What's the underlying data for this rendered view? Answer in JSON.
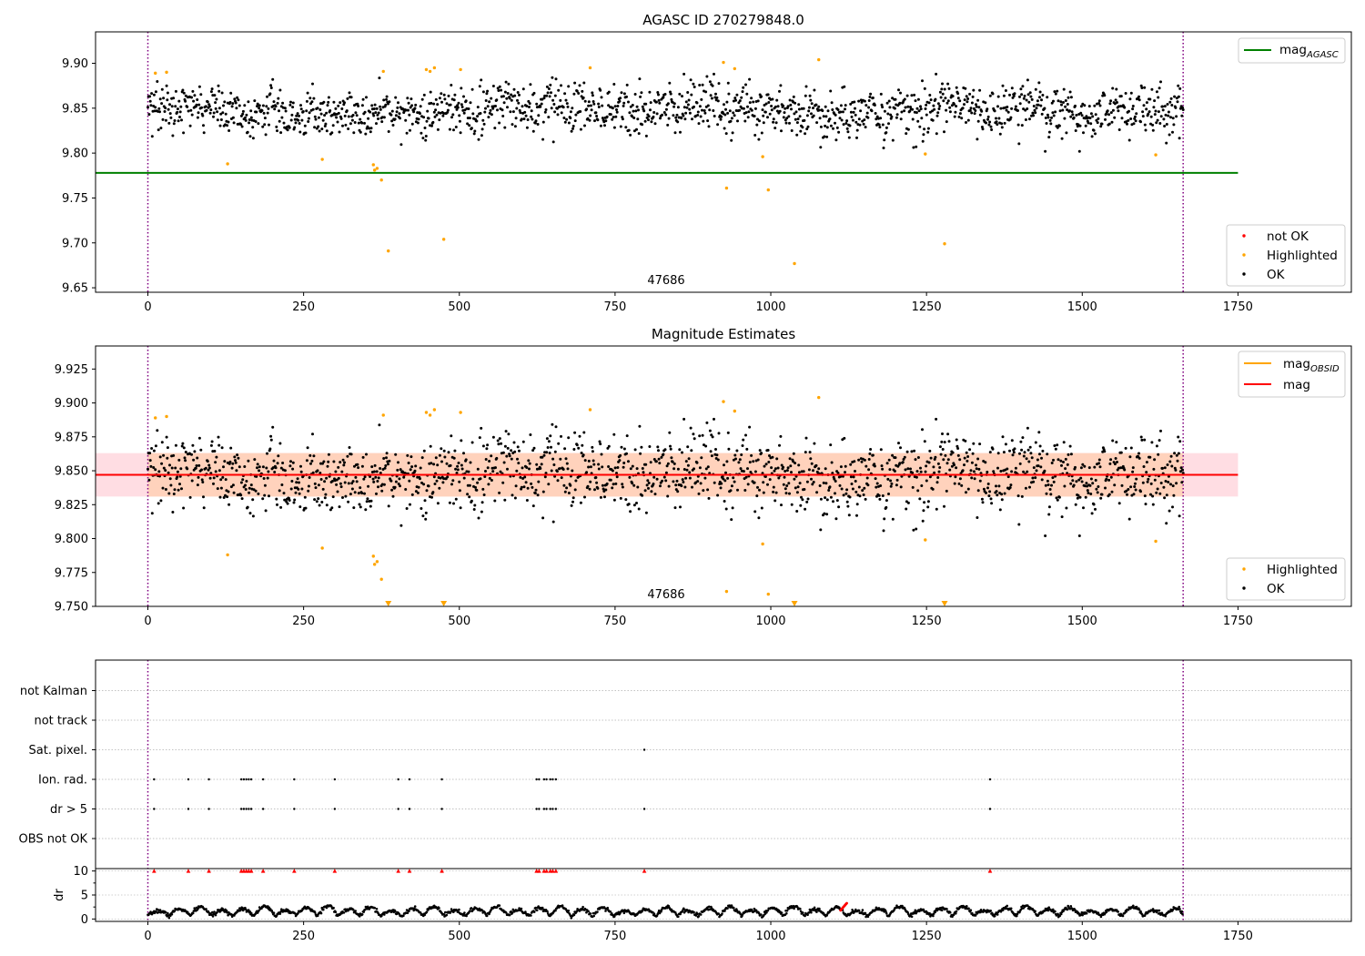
{
  "figure": {
    "title": "AGASC ID 270279848.0"
  },
  "chart_data": [
    {
      "type": "scatter",
      "title": "AGASC ID 270279848.0",
      "xlim": [
        -84,
        1932
      ],
      "ylim": [
        9.645,
        9.935
      ],
      "xticks": [
        0,
        250,
        500,
        750,
        1000,
        1250,
        1500,
        1750
      ],
      "yticks": [
        9.65,
        9.7,
        9.75,
        9.8,
        9.85,
        9.9
      ],
      "ytick_labels": [
        "9.65",
        "9.70",
        "9.75",
        "9.80",
        "9.85",
        "9.90"
      ],
      "vlines": [
        0,
        1662
      ],
      "hline": {
        "label": "mag",
        "subscript": "AGASC",
        "value": 9.778,
        "x_range": [
          -84,
          1750
        ],
        "color": "#008000"
      },
      "annotation": {
        "text": "47686",
        "x": 830,
        "y": 9.652
      },
      "legend_lines": [
        {
          "label": "mag",
          "subscript": "AGASC",
          "color": "#008000"
        }
      ],
      "legend_markers": [
        {
          "label": "not OK",
          "color": "#ff0000"
        },
        {
          "label": "Highlighted",
          "color": "#ffa500"
        },
        {
          "label": "OK",
          "color": "#000000"
        }
      ],
      "series": [
        {
          "name": "Highlighted",
          "color": "#ffa500",
          "points": [
            [
              12,
              9.889
            ],
            [
              30,
              9.89
            ],
            [
              128,
              9.788
            ],
            [
              280,
              9.793
            ],
            [
              362,
              9.787
            ],
            [
              364,
              9.781
            ],
            [
              368,
              9.783
            ],
            [
              375,
              9.77
            ],
            [
              378,
              9.891
            ],
            [
              386,
              9.691
            ],
            [
              447,
              9.893
            ],
            [
              453,
              9.891
            ],
            [
              460,
              9.895
            ],
            [
              475,
              9.704
            ],
            [
              502,
              9.893
            ],
            [
              710,
              9.895
            ],
            [
              924,
              9.901
            ],
            [
              929,
              9.761
            ],
            [
              942,
              9.894
            ],
            [
              987,
              9.796
            ],
            [
              996,
              9.759
            ],
            [
              1038,
              9.677
            ],
            [
              1077,
              9.904
            ],
            [
              1248,
              9.799
            ],
            [
              1279,
              9.699
            ],
            [
              1618,
              9.798
            ]
          ]
        },
        {
          "name": "OK",
          "color": "#000000",
          "n": 1660,
          "x_range": [
            0,
            1662
          ],
          "center": 9.847,
          "spread": 0.016,
          "clip": [
            9.802,
            9.888
          ]
        }
      ]
    },
    {
      "type": "scatter",
      "title": "Magnitude Estimates",
      "xlim": [
        -84,
        1932
      ],
      "ylim": [
        9.75,
        9.942
      ],
      "xticks": [
        0,
        250,
        500,
        750,
        1000,
        1250,
        1500,
        1750
      ],
      "yticks": [
        9.75,
        9.775,
        9.8,
        9.825,
        9.85,
        9.875,
        9.9,
        9.925
      ],
      "ytick_labels": [
        "9.750",
        "9.775",
        "9.800",
        "9.825",
        "9.850",
        "9.875",
        "9.900",
        "9.925"
      ],
      "vlines": [
        0,
        1662
      ],
      "band": {
        "y_range": [
          9.831,
          9.863
        ],
        "x_range": [
          -84,
          1750
        ],
        "color": "#ffdde3"
      },
      "obsid_band": {
        "y_range": [
          9.831,
          9.863
        ],
        "x_range": [
          0,
          1662
        ],
        "color": "#ffd2bc"
      },
      "hline": {
        "label": "mag",
        "value": 9.847,
        "x_range": [
          -84,
          1750
        ],
        "color": "#ff0000"
      },
      "obsid_line": {
        "label": "mag",
        "subscript": "OBSID",
        "value": 9.847,
        "x_range": [
          0,
          1662
        ],
        "color": "#ffa500"
      },
      "annotation": {
        "text": "47686",
        "x": 830,
        "y": 9.7565
      },
      "legend_lines": [
        {
          "label": "mag",
          "subscript": "OBSID",
          "color": "#ffa500"
        },
        {
          "label": "mag",
          "subscript": "",
          "color": "#ff0000"
        }
      ],
      "legend_markers": [
        {
          "label": "Highlighted",
          "color": "#ffa500"
        },
        {
          "label": "OK",
          "color": "#000000"
        }
      ],
      "clipped_markers": [
        386,
        475,
        1038,
        1279
      ],
      "series": [
        {
          "name": "Highlighted",
          "color": "#ffa500",
          "points": [
            [
              12,
              9.889
            ],
            [
              30,
              9.89
            ],
            [
              128,
              9.788
            ],
            [
              280,
              9.793
            ],
            [
              362,
              9.787
            ],
            [
              364,
              9.781
            ],
            [
              368,
              9.783
            ],
            [
              375,
              9.77
            ],
            [
              378,
              9.891
            ],
            [
              447,
              9.893
            ],
            [
              453,
              9.891
            ],
            [
              460,
              9.895
            ],
            [
              502,
              9.893
            ],
            [
              710,
              9.895
            ],
            [
              924,
              9.901
            ],
            [
              929,
              9.761
            ],
            [
              942,
              9.894
            ],
            [
              987,
              9.796
            ],
            [
              996,
              9.759
            ],
            [
              1077,
              9.904
            ],
            [
              1248,
              9.799
            ],
            [
              1618,
              9.798
            ]
          ]
        },
        {
          "name": "OK",
          "color": "#000000",
          "n": 1660,
          "x_range": [
            0,
            1662
          ],
          "center": 9.847,
          "spread": 0.016,
          "clip": [
            9.802,
            9.888
          ]
        }
      ]
    },
    {
      "type": "scatter",
      "title": "",
      "xlim": [
        -84,
        1932
      ],
      "xticks": [
        0,
        250,
        500,
        750,
        1000,
        1250,
        1500,
        1750
      ],
      "vlines": [
        0,
        1662
      ],
      "flag_rows": [
        "not Kalman",
        "not track",
        "Sat. pixel.",
        "Ion. rad.",
        "dr > 5",
        "OBS not OK"
      ],
      "flags": {
        "Sat. pixel.": [
          797
        ],
        "Ion. rad.": [
          10,
          65,
          98,
          150,
          154,
          158,
          162,
          166,
          185,
          235,
          300,
          402,
          420,
          472,
          624,
          628,
          636,
          640,
          646,
          650,
          655,
          1352
        ],
        "dr > 5": [
          10,
          65,
          98,
          150,
          154,
          158,
          162,
          166,
          185,
          235,
          300,
          402,
          420,
          472,
          624,
          628,
          636,
          640,
          646,
          650,
          655,
          797,
          1352
        ]
      },
      "dr": {
        "ylabel": "dr",
        "ylim": [
          -0.5,
          10.5
        ],
        "yticks": [
          0,
          5,
          10
        ],
        "ytick_labels": [
          "0",
          "5",
          "10"
        ],
        "capped_value": 10,
        "capped_x": [
          10,
          65,
          98,
          150,
          154,
          158,
          162,
          166,
          185,
          235,
          300,
          402,
          420,
          472,
          624,
          628,
          636,
          640,
          646,
          650,
          655,
          797,
          1352
        ],
        "red_trace_x": [
          1112,
          1122
        ],
        "typical_range": [
          0,
          2.8
        ]
      }
    }
  ]
}
